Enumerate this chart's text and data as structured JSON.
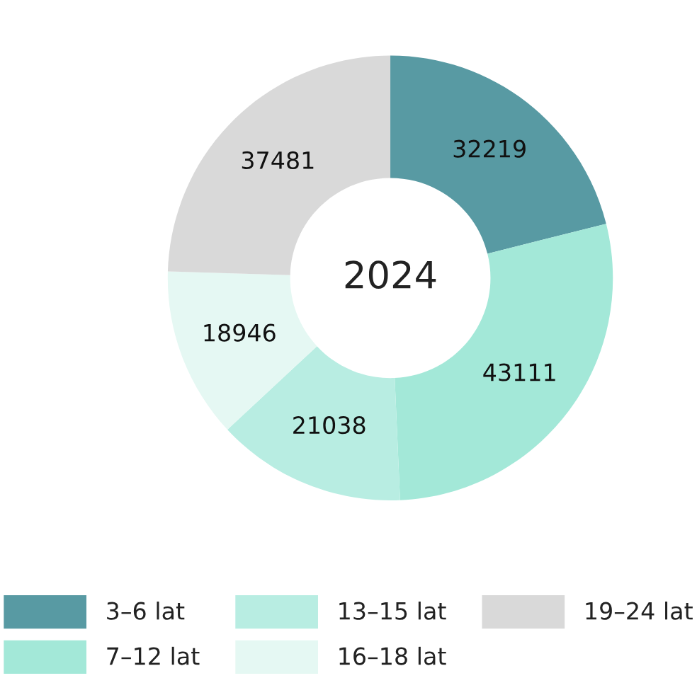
{
  "chart_data": {
    "type": "donut",
    "title": "2024",
    "categories": [
      "3–6 lat",
      "7–12 lat",
      "13–15 lat",
      "16–18 lat",
      "19–24 lat"
    ],
    "values": [
      32219,
      43111,
      21038,
      18946,
      37481
    ],
    "colors": [
      "#589aa3",
      "#a3e8d8",
      "#b8ede2",
      "#e5f8f3",
      "#d9d9d9"
    ],
    "data_labels": true,
    "legend": "bottom"
  }
}
